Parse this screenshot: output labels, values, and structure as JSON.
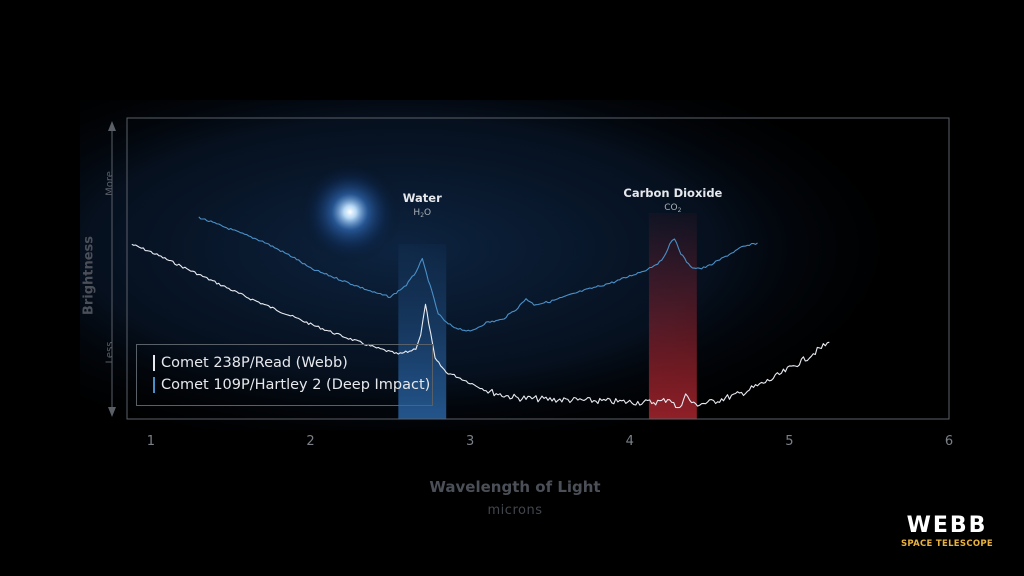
{
  "chart_data": {
    "type": "line",
    "xlabel": "Wavelength of Light",
    "xunit": "microns",
    "ylabel": "Brightness",
    "y_axis_top": "More",
    "y_axis_bottom": "Less",
    "xlim": [
      0.85,
      6
    ],
    "ylim": [
      0,
      100
    ],
    "xticks": [
      "1",
      "2",
      "3",
      "4",
      "5",
      "6"
    ],
    "grid": false,
    "legend_position": "bottom-left",
    "series": [
      {
        "name": "Comet 238P/Read (Webb)",
        "color": "#e8ecf2",
        "x": [
          0.88,
          1.0,
          1.2,
          1.4,
          1.6,
          1.8,
          2.0,
          2.2,
          2.4,
          2.55,
          2.62,
          2.66,
          2.69,
          2.72,
          2.74,
          2.78,
          2.85,
          2.9,
          3.0,
          3.1,
          3.2,
          3.3,
          3.5,
          3.7,
          3.9,
          4.1,
          4.2,
          4.25,
          4.3,
          4.35,
          4.4,
          4.5,
          4.7,
          4.9,
          5.1,
          5.25
        ],
        "y": [
          58,
          55.5,
          50.5,
          45.5,
          40.5,
          36,
          31.5,
          27.5,
          23.8,
          21.5,
          22.5,
          23.5,
          28,
          38,
          32,
          20,
          15.5,
          14.5,
          12,
          9.5,
          8,
          7,
          6.5,
          6.2,
          5.8,
          5.5,
          5.8,
          7,
          3,
          8,
          4.8,
          5.5,
          8.5,
          13.5,
          20,
          25.5
        ]
      },
      {
        "name": "Comet 109P/Hartley 2 (Deep Impact)",
        "color": "#4a90c8",
        "x": [
          1.3,
          1.5,
          1.7,
          1.9,
          2.0,
          2.2,
          2.4,
          2.5,
          2.6,
          2.65,
          2.7,
          2.75,
          2.8,
          2.85,
          2.9,
          3.0,
          3.1,
          3.2,
          3.3,
          3.35,
          3.4,
          3.5,
          3.7,
          3.9,
          4.1,
          4.2,
          4.25,
          4.28,
          4.32,
          4.38,
          4.45,
          4.5,
          4.6,
          4.7,
          4.8
        ],
        "y": [
          67,
          63,
          59,
          53.5,
          50,
          46,
          42,
          40.5,
          44.5,
          48,
          53,
          44,
          35,
          32,
          30.5,
          29,
          32,
          33,
          37,
          40,
          38,
          39,
          42.5,
          45.5,
          49.5,
          52.5,
          58,
          60,
          55,
          50.5,
          50,
          51,
          54,
          57,
          58.5
        ]
      }
    ],
    "annotations": [
      {
        "label": "Water",
        "formula": "H",
        "formula_sub": "2",
        "formula_tail": "O",
        "band": [
          2.55,
          2.85
        ],
        "color": "#2e70b8"
      },
      {
        "label": "Carbon Dioxide",
        "formula": "CO",
        "formula_sub": "2",
        "formula_tail": "",
        "band": [
          4.12,
          4.42
        ],
        "color": "#c02a35"
      }
    ]
  },
  "logo": {
    "main": "WEBB",
    "sub": "SPACE TELESCOPE",
    "color_main": "#ffffff",
    "color_sub": "#e8b23c"
  }
}
